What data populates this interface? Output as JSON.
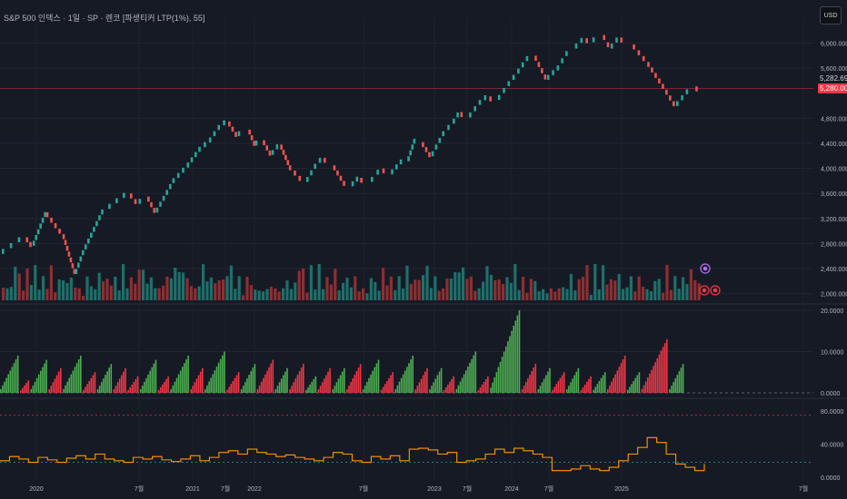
{
  "header": {
    "title": "S&P 500 인덱스 · 1일 · SP · 렌코 [파생티커 LTP(1%), 55]",
    "currency_button": "USD"
  },
  "colors": {
    "background": "#161a25",
    "up": "#26a69a",
    "down": "#ef5350",
    "vol_up": "#1f6f6a",
    "vol_down": "#8c2f33",
    "hist_up": "#4caf50",
    "hist_down": "#f23645",
    "osc_line": "#ff9800",
    "grid": "#222632"
  },
  "chart_data": [
    {
      "type": "renko",
      "name": "price",
      "y_ticks": [
        "6,000.0000",
        "5,600.0000",
        "4,800.0000",
        "4,400.0000",
        "4,000.0000",
        "3,600.0000",
        "3,200.0000",
        "2,800.0000",
        "2,400.0000",
        "2,000.0000"
      ],
      "ylim": [
        1850,
        6400
      ],
      "path_points": [
        [
          0,
          2620
        ],
        [
          2.5,
          2900
        ],
        [
          3.2,
          2750
        ],
        [
          4.6,
          3300
        ],
        [
          6.3,
          2950
        ],
        [
          7.6,
          2300
        ],
        [
          8.3,
          2600
        ],
        [
          10.3,
          3250
        ],
        [
          11.8,
          3430
        ],
        [
          13.3,
          3600
        ],
        [
          14.2,
          3420
        ],
        [
          15.1,
          3550
        ],
        [
          16,
          3280
        ],
        [
          17.7,
          3750
        ],
        [
          19.2,
          4000
        ],
        [
          20.4,
          4250
        ],
        [
          21.5,
          4400
        ],
        [
          22.4,
          4600
        ],
        [
          23.5,
          4750
        ],
        [
          24.5,
          4500
        ],
        [
          25.6,
          4620
        ],
        [
          26.3,
          4350
        ],
        [
          27.1,
          4450
        ],
        [
          28,
          4200
        ],
        [
          28.9,
          4380
        ],
        [
          29.8,
          4050
        ],
        [
          30.8,
          3880
        ],
        [
          31.6,
          3770
        ],
        [
          32.4,
          3980
        ],
        [
          33.4,
          4170
        ],
        [
          34.4,
          4050
        ],
        [
          35.4,
          3800
        ],
        [
          36.3,
          3700
        ],
        [
          37.2,
          3850
        ],
        [
          38.3,
          3770
        ],
        [
          39.5,
          4000
        ],
        [
          40.4,
          3890
        ],
        [
          41.3,
          4050
        ],
        [
          42.1,
          4100
        ],
        [
          42.7,
          4380
        ],
        [
          43.6,
          4420
        ],
        [
          44.6,
          4180
        ],
        [
          45.7,
          4500
        ],
        [
          46.8,
          4700
        ],
        [
          47.6,
          4900
        ],
        [
          48.5,
          4800
        ],
        [
          49.5,
          5000
        ],
        [
          50.6,
          5150
        ],
        [
          51.5,
          5080
        ],
        [
          52.5,
          5300
        ],
        [
          53.5,
          5500
        ],
        [
          54.4,
          5700
        ],
        [
          55.3,
          5800
        ],
        [
          56.6,
          5400
        ],
        [
          57.6,
          5550
        ],
        [
          58.5,
          5780
        ],
        [
          59.5,
          5900
        ],
        [
          60.6,
          6080
        ],
        [
          61.3,
          6000
        ],
        [
          62.4,
          6130
        ],
        [
          63.2,
          5900
        ],
        [
          64.2,
          6090
        ],
        [
          65.5,
          5980
        ],
        [
          67,
          5700
        ],
        [
          68.5,
          5350
        ],
        [
          70,
          4980
        ],
        [
          71,
          5170
        ],
        [
          72,
          5310
        ],
        [
          73,
          5230
        ]
      ],
      "last_price_label": "5,282.6900",
      "current_price_label": "5,280.0000"
    },
    {
      "type": "bar",
      "name": "volume",
      "bars": [
        3,
        1,
        2,
        3,
        3,
        1,
        3,
        2,
        3,
        2,
        2,
        2,
        3,
        1,
        2,
        2,
        2,
        2,
        2,
        1,
        1,
        2,
        2,
        1,
        3,
        2,
        2,
        2,
        2,
        2,
        3,
        2,
        2,
        2,
        3,
        3,
        2,
        2,
        2,
        1,
        3,
        2,
        3,
        3,
        3,
        3,
        2,
        2,
        1,
        3,
        3,
        3,
        2,
        2,
        2,
        2,
        3,
        3,
        2,
        2,
        1,
        2,
        2,
        1,
        1,
        1,
        1,
        2,
        1,
        2,
        1
      ]
    },
    {
      "type": "bar",
      "name": "histogram",
      "y_ticks": [
        "20.0000",
        "10.0000",
        "0.0000"
      ],
      "ylim": [
        0,
        20
      ],
      "runs": [
        {
          "dir": "up",
          "peak": 9
        },
        {
          "dir": "down",
          "peak": 3
        },
        {
          "dir": "up",
          "peak": 8
        },
        {
          "dir": "down",
          "peak": 6
        },
        {
          "dir": "up",
          "peak": 9
        },
        {
          "dir": "down",
          "peak": 5
        },
        {
          "dir": "up",
          "peak": 7
        },
        {
          "dir": "down",
          "peak": 6
        },
        {
          "dir": "down",
          "peak": 4
        },
        {
          "dir": "up",
          "peak": 8
        },
        {
          "dir": "down",
          "peak": 4
        },
        {
          "dir": "up",
          "peak": 9
        },
        {
          "dir": "down",
          "peak": 6
        },
        {
          "dir": "up",
          "peak": 10
        },
        {
          "dir": "down",
          "peak": 5
        },
        {
          "dir": "up",
          "peak": 7
        },
        {
          "dir": "down",
          "peak": 8
        },
        {
          "dir": "up",
          "peak": 6
        },
        {
          "dir": "down",
          "peak": 7
        },
        {
          "dir": "up",
          "peak": 4
        },
        {
          "dir": "down",
          "peak": 6
        },
        {
          "dir": "up",
          "peak": 6
        },
        {
          "dir": "down",
          "peak": 7
        },
        {
          "dir": "up",
          "peak": 8
        },
        {
          "dir": "down",
          "peak": 5
        },
        {
          "dir": "up",
          "peak": 9
        },
        {
          "dir": "down",
          "peak": 6
        },
        {
          "dir": "up",
          "peak": 6
        },
        {
          "dir": "down",
          "peak": 4
        },
        {
          "dir": "up",
          "peak": 10
        },
        {
          "dir": "down",
          "peak": 4
        },
        {
          "dir": "up",
          "peak": 20
        },
        {
          "dir": "down",
          "peak": 7
        },
        {
          "dir": "up",
          "peak": 6
        },
        {
          "dir": "down",
          "peak": 5
        },
        {
          "dir": "up",
          "peak": 6
        },
        {
          "dir": "down",
          "peak": 4
        },
        {
          "dir": "up",
          "peak": 5
        },
        {
          "dir": "down",
          "peak": 9
        },
        {
          "dir": "up",
          "peak": 5
        },
        {
          "dir": "down",
          "peak": 13
        },
        {
          "dir": "up",
          "peak": 7
        }
      ]
    },
    {
      "type": "line",
      "name": "oscillator",
      "y_ticks": [
        "80.0000",
        "40.0000",
        "0.0000"
      ],
      "ylim": [
        0,
        90
      ],
      "reference_lines": [
        75,
        18
      ],
      "values": [
        20,
        25,
        22,
        18,
        24,
        21,
        18,
        23,
        26,
        22,
        28,
        22,
        20,
        18,
        24,
        22,
        25,
        21,
        19,
        22,
        26,
        20,
        24,
        30,
        32,
        28,
        34,
        30,
        28,
        25,
        27,
        24,
        22,
        20,
        24,
        30,
        28,
        20,
        18,
        25,
        22,
        26,
        20,
        34,
        35,
        33,
        28,
        30,
        18,
        20,
        22,
        28,
        34,
        30,
        35,
        32,
        28,
        24,
        8,
        8,
        10,
        14,
        10,
        8,
        12,
        20,
        28,
        36,
        48,
        42,
        28,
        16,
        12,
        8,
        16
      ]
    }
  ],
  "x_ticks": [
    "2020",
    "7월",
    "2021",
    "7월",
    "2022",
    "7월",
    "2023",
    "7월",
    "2024",
    "7월",
    "2025",
    "7월"
  ]
}
